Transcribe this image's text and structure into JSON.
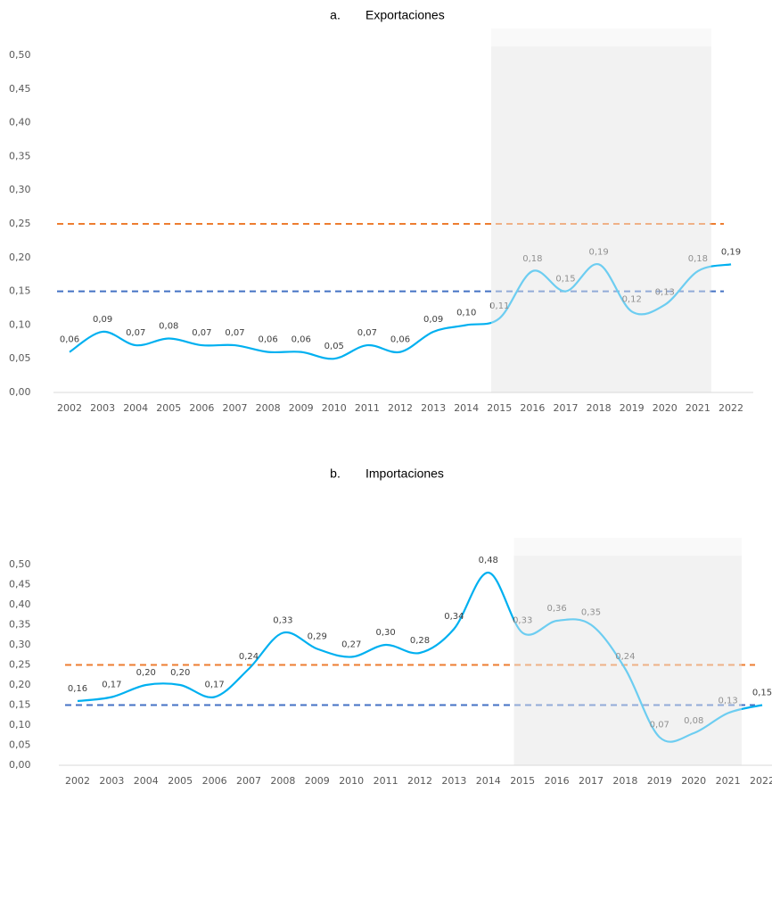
{
  "chart_data": [
    {
      "type": "line",
      "label": "a.",
      "title": "Exportaciones",
      "categories": [
        "2002",
        "2003",
        "2004",
        "2005",
        "2006",
        "2007",
        "2008",
        "2009",
        "2010",
        "2011",
        "2012",
        "2013",
        "2014",
        "2015",
        "2016",
        "2017",
        "2018",
        "2019",
        "2020",
        "2021",
        "2022"
      ],
      "series": [
        {
          "color": "#00b0f0",
          "values": [
            0.06,
            0.09,
            0.07,
            0.08,
            0.07,
            0.07,
            0.06,
            0.06,
            0.05,
            0.07,
            0.06,
            0.09,
            0.1,
            0.11,
            0.18,
            0.15,
            0.19,
            0.12,
            0.13,
            0.18,
            0.19
          ],
          "value_labels": [
            "0,06",
            "0,09",
            "0,07",
            "0,08",
            "0,07",
            "0,07",
            "0,06",
            "0,06",
            "0,05",
            "0,07",
            "0,06",
            "0,09",
            "0,10",
            "0,11",
            "0,18",
            "0,15",
            "0,19",
            "0,12",
            "0,13",
            "0,18",
            "0,19"
          ]
        }
      ],
      "reference_lines": [
        {
          "value": 0.25,
          "color": "#ed7d31"
        },
        {
          "value": 0.15,
          "color": "#4472c4"
        }
      ],
      "highlight": {
        "from": "2015",
        "to": "2021",
        "color": "#f2f2f2"
      },
      "ylim": [
        0,
        0.5
      ],
      "yticks": [
        {
          "value": 0,
          "label": "0,00"
        },
        {
          "value": 0.05,
          "label": "0,05"
        },
        {
          "value": 0.1,
          "label": "0,10"
        },
        {
          "value": 0.15,
          "label": "0,15"
        },
        {
          "value": 0.2,
          "label": "0,20"
        },
        {
          "value": 0.25,
          "label": "0,25"
        },
        {
          "value": 0.3,
          "label": "0,30"
        },
        {
          "value": 0.35,
          "label": "0,35"
        },
        {
          "value": 0.4,
          "label": "0,40"
        },
        {
          "value": 0.45,
          "label": "0,45"
        },
        {
          "value": 0.5,
          "label": "0,50"
        }
      ]
    },
    {
      "type": "line",
      "label": "b.",
      "title": "Importaciones",
      "categories": [
        "2002",
        "2003",
        "2004",
        "2005",
        "2006",
        "2007",
        "2008",
        "2009",
        "2010",
        "2011",
        "2012",
        "2013",
        "2014",
        "2015",
        "2016",
        "2017",
        "2018",
        "2019",
        "2020",
        "2021",
        "2022"
      ],
      "series": [
        {
          "color": "#00b0f0",
          "values": [
            0.16,
            0.17,
            0.2,
            0.2,
            0.17,
            0.24,
            0.33,
            0.29,
            0.27,
            0.3,
            0.28,
            0.34,
            0.48,
            0.33,
            0.36,
            0.35,
            0.24,
            0.07,
            0.08,
            0.13,
            0.15
          ],
          "value_labels": [
            "0,16",
            "0,17",
            "0,20",
            "0,20",
            "0,17",
            "0,24",
            "0,33",
            "0,29",
            "0,27",
            "0,30",
            "0,28",
            "0,34",
            "0,48",
            "0,33",
            "0,36",
            "0,35",
            "0,24",
            "0,07",
            "0,08",
            "0,13",
            "0,15"
          ]
        }
      ],
      "reference_lines": [
        {
          "value": 0.25,
          "color": "#ed7d31"
        },
        {
          "value": 0.15,
          "color": "#4472c4"
        }
      ],
      "highlight": {
        "from": "2015",
        "to": "2021",
        "color": "#f2f2f2"
      },
      "ylim": [
        0,
        0.5
      ],
      "yticks": [
        {
          "value": 0,
          "label": "0,00"
        },
        {
          "value": 0.05,
          "label": "0,05"
        },
        {
          "value": 0.1,
          "label": "0,10"
        },
        {
          "value": 0.15,
          "label": "0,15"
        },
        {
          "value": 0.2,
          "label": "0,20"
        },
        {
          "value": 0.25,
          "label": "0,25"
        },
        {
          "value": 0.3,
          "label": "0,30"
        },
        {
          "value": 0.35,
          "label": "0,35"
        },
        {
          "value": 0.4,
          "label": "0,40"
        },
        {
          "value": 0.45,
          "label": "0,45"
        },
        {
          "value": 0.5,
          "label": "0,50"
        }
      ]
    }
  ]
}
